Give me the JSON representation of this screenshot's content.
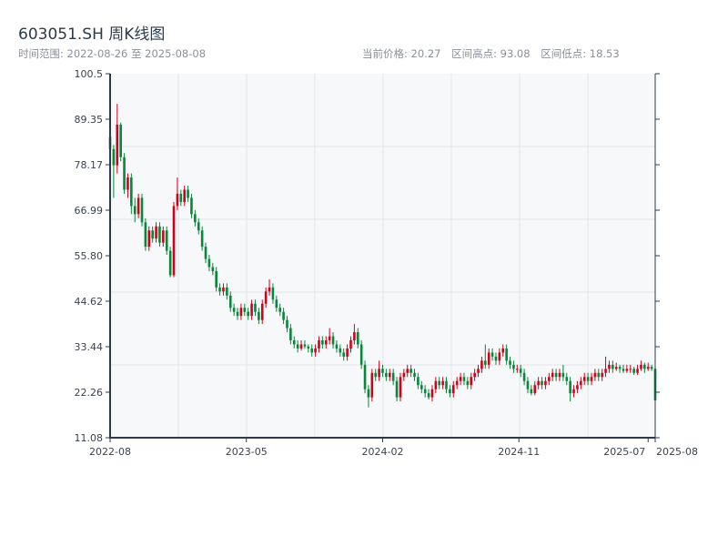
{
  "header": {
    "title": "603051.SH 周K线图",
    "range_label": "时间范围: 2022-08-26 至 2025-08-08",
    "current_price": "当前价格: 20.27",
    "period_high": "区间高点: 93.08",
    "period_low": "区间低点: 18.53"
  },
  "colors": {
    "up": "#d0021b",
    "down": "#07873a",
    "plot_bg": "#f7f8fa",
    "grid": "#e1e4ea",
    "axis": "#2c3a4b"
  },
  "chart_data": {
    "type": "candlestick",
    "title": "603051.SH 周K线图",
    "ylim": [
      11.08,
      100.5
    ],
    "y_ticks": [
      "100.5",
      "89.35",
      "78.17",
      "66.99",
      "55.80",
      "44.62",
      "33.44",
      "22.26",
      "11.08"
    ],
    "x_ticks": [
      {
        "label": "2022-08",
        "week": 0
      },
      {
        "label": "2023-05",
        "week": 38.5
      },
      {
        "label": "2024-02",
        "week": 77
      },
      {
        "label": "2024-11",
        "week": 115.5
      },
      {
        "label": "2025-07",
        "week": 152
      },
      {
        "label": "2025-08",
        "week": 154
      }
    ],
    "grid": true,
    "up_color": "red",
    "down_color": "green",
    "ohlc_fields": [
      "open",
      "high",
      "low",
      "close"
    ],
    "candles": [
      [
        85,
        87,
        80,
        82
      ],
      [
        82,
        83,
        70,
        78
      ],
      [
        78,
        93.08,
        76,
        88
      ],
      [
        88,
        88.5,
        79,
        80
      ],
      [
        80,
        81,
        71,
        72
      ],
      [
        72,
        76,
        70,
        75
      ],
      [
        75,
        76,
        66,
        68
      ],
      [
        68,
        70,
        64,
        66
      ],
      [
        66,
        71,
        65,
        70
      ],
      [
        70,
        71,
        63,
        64
      ],
      [
        64,
        65,
        57,
        58
      ],
      [
        58,
        63,
        57,
        62
      ],
      [
        62,
        63,
        59,
        60
      ],
      [
        60,
        64,
        59,
        63
      ],
      [
        63,
        64,
        58,
        59
      ],
      [
        59,
        63,
        58,
        62
      ],
      [
        62,
        63,
        56,
        57
      ],
      [
        57,
        58,
        50.5,
        51
      ],
      [
        51,
        69,
        50.5,
        68
      ],
      [
        68,
        75,
        67,
        71
      ],
      [
        71,
        72,
        68,
        69
      ],
      [
        69,
        73,
        68,
        72
      ],
      [
        72,
        73,
        69,
        70
      ],
      [
        70,
        71,
        65,
        66
      ],
      [
        66,
        67,
        63,
        64
      ],
      [
        64,
        65,
        61,
        62
      ],
      [
        62,
        63,
        57,
        58
      ],
      [
        58,
        59,
        54,
        55
      ],
      [
        55,
        56,
        52,
        53
      ],
      [
        53,
        54,
        51,
        52
      ],
      [
        52,
        53,
        47,
        48
      ],
      [
        48,
        49,
        46,
        47
      ],
      [
        47,
        49,
        46,
        48
      ],
      [
        48,
        49,
        45,
        46
      ],
      [
        46,
        47,
        42,
        43
      ],
      [
        43,
        44,
        41,
        42
      ],
      [
        42,
        43,
        40,
        41
      ],
      [
        41,
        44,
        40,
        43
      ],
      [
        43,
        44,
        41,
        42
      ],
      [
        42,
        43,
        40,
        41
      ],
      [
        41,
        45,
        40,
        44
      ],
      [
        44,
        45,
        41,
        42
      ],
      [
        42,
        43,
        39,
        40
      ],
      [
        40,
        45,
        39,
        44
      ],
      [
        44,
        48,
        43,
        47
      ],
      [
        47,
        50,
        46,
        48
      ],
      [
        48,
        49,
        44,
        45
      ],
      [
        45,
        46,
        42,
        43
      ],
      [
        43,
        44,
        41,
        42
      ],
      [
        42,
        43,
        39,
        40
      ],
      [
        40,
        41,
        37,
        38
      ],
      [
        38,
        39,
        34,
        35
      ],
      [
        35,
        36,
        33,
        34
      ],
      [
        34,
        35,
        32,
        33
      ],
      [
        33,
        35,
        32.5,
        34
      ],
      [
        34,
        35,
        33,
        33.5
      ],
      [
        33.5,
        34,
        32,
        33
      ],
      [
        33,
        34,
        31,
        32
      ],
      [
        32,
        34,
        31,
        33
      ],
      [
        33,
        36,
        32,
        35
      ],
      [
        35,
        36,
        33,
        34
      ],
      [
        34,
        36,
        33,
        35
      ],
      [
        35,
        38,
        34,
        36
      ],
      [
        36,
        37,
        33,
        34
      ],
      [
        34,
        35,
        32,
        33
      ],
      [
        33,
        34,
        31,
        32
      ],
      [
        32,
        33,
        30,
        31
      ],
      [
        31,
        34,
        30,
        33
      ],
      [
        33,
        36,
        32,
        35
      ],
      [
        35,
        39,
        34,
        37
      ],
      [
        37,
        38,
        33,
        34
      ],
      [
        34,
        35,
        28,
        29
      ],
      [
        29,
        30,
        22,
        23
      ],
      [
        23,
        24,
        18.53,
        21
      ],
      [
        21,
        28,
        20,
        27
      ],
      [
        27,
        28,
        25,
        26
      ],
      [
        26,
        30,
        25,
        28
      ],
      [
        28,
        29,
        26,
        27
      ],
      [
        27,
        28,
        25,
        26
      ],
      [
        26,
        28,
        25,
        27
      ],
      [
        27,
        28,
        24,
        25
      ],
      [
        25,
        26,
        20,
        21
      ],
      [
        21,
        27,
        20,
        26
      ],
      [
        26,
        28,
        25,
        27
      ],
      [
        27,
        29,
        26,
        28
      ],
      [
        28,
        29,
        26,
        27
      ],
      [
        27,
        28,
        25,
        26
      ],
      [
        26,
        27,
        23,
        24
      ],
      [
        24,
        25,
        22,
        23
      ],
      [
        23,
        24,
        21,
        22
      ],
      [
        22,
        23,
        20.5,
        21
      ],
      [
        21,
        24,
        20,
        23
      ],
      [
        23,
        26,
        22,
        25
      ],
      [
        25,
        26,
        23,
        24
      ],
      [
        24,
        26,
        23,
        25
      ],
      [
        25,
        26,
        22,
        23
      ],
      [
        23,
        24,
        21,
        22
      ],
      [
        22,
        25,
        21,
        24
      ],
      [
        24,
        26,
        23,
        25
      ],
      [
        25,
        27,
        24,
        26
      ],
      [
        26,
        27,
        24,
        25
      ],
      [
        25,
        26,
        23,
        24
      ],
      [
        24,
        27,
        23,
        26
      ],
      [
        26,
        28,
        25,
        27
      ],
      [
        27,
        29,
        26,
        28
      ],
      [
        28,
        31,
        27,
        30
      ],
      [
        30,
        34,
        28,
        29
      ],
      [
        29,
        33,
        28,
        32
      ],
      [
        32,
        33,
        30,
        31
      ],
      [
        31,
        32,
        29,
        30
      ],
      [
        30,
        33,
        29,
        32
      ],
      [
        32,
        34,
        31,
        33
      ],
      [
        33,
        34,
        29,
        30
      ],
      [
        30,
        31,
        28,
        29
      ],
      [
        29,
        30,
        27,
        28
      ],
      [
        28,
        29,
        27,
        28
      ],
      [
        28,
        29,
        26,
        27
      ],
      [
        27,
        28,
        24,
        25
      ],
      [
        25,
        26,
        22,
        23
      ],
      [
        23,
        24,
        21.5,
        22
      ],
      [
        22,
        25,
        21.5,
        24
      ],
      [
        24,
        26,
        23,
        25
      ],
      [
        25,
        26,
        23,
        24
      ],
      [
        24,
        26,
        23,
        25
      ],
      [
        25,
        27,
        24,
        26
      ],
      [
        26,
        28,
        25,
        27
      ],
      [
        27,
        28,
        25,
        26
      ],
      [
        26,
        28,
        25,
        27
      ],
      [
        27,
        29,
        25,
        26
      ],
      [
        26,
        27,
        24,
        25
      ],
      [
        25,
        26,
        20,
        22
      ],
      [
        22,
        24,
        21,
        23
      ],
      [
        23,
        25,
        22,
        24
      ],
      [
        24,
        26,
        23,
        25
      ],
      [
        25,
        27,
        24,
        26
      ],
      [
        26,
        27,
        24,
        25
      ],
      [
        25,
        27,
        24,
        26
      ],
      [
        26,
        28,
        25,
        27
      ],
      [
        27,
        28,
        25,
        26
      ],
      [
        26,
        28,
        25,
        27
      ],
      [
        27,
        31,
        26,
        28
      ],
      [
        28,
        30,
        27,
        29
      ],
      [
        29,
        30,
        27,
        28
      ],
      [
        28,
        29.5,
        27.5,
        28.5
      ],
      [
        28.5,
        29,
        27,
        28
      ],
      [
        28,
        29,
        27,
        27.5
      ],
      [
        27.5,
        29,
        27,
        28
      ],
      [
        28,
        29,
        27,
        28
      ],
      [
        28,
        28.5,
        26.5,
        27
      ],
      [
        27,
        29,
        26.5,
        28
      ],
      [
        28,
        30,
        27.5,
        29
      ],
      [
        29,
        29.5,
        27,
        28
      ],
      [
        28,
        29.5,
        27.5,
        28.5
      ],
      [
        28.5,
        29,
        27.5,
        28
      ],
      [
        28,
        29,
        20,
        20.27
      ]
    ]
  }
}
